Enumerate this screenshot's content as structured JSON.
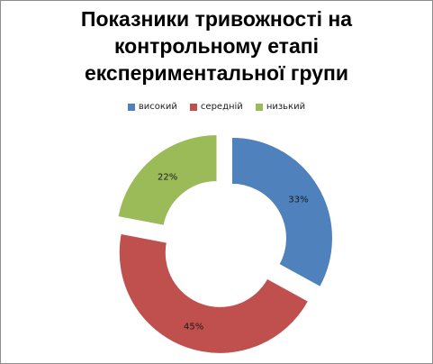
{
  "chart_data": {
    "type": "pie",
    "subtype": "doughnut-exploded",
    "title": "Показники тривожності на контрольному етапі експериментальної групи",
    "title_lines": [
      "Показники тривожності на",
      "контрольному етапі",
      "експериментальної групи"
    ],
    "categories": [
      "високий",
      "середній",
      "низький"
    ],
    "values": [
      33,
      45,
      22
    ],
    "data_labels": [
      "33%",
      "45%",
      "22%"
    ],
    "colors": [
      "#4f81bd",
      "#c0504d",
      "#9bbb59"
    ],
    "legend_position": "top"
  }
}
